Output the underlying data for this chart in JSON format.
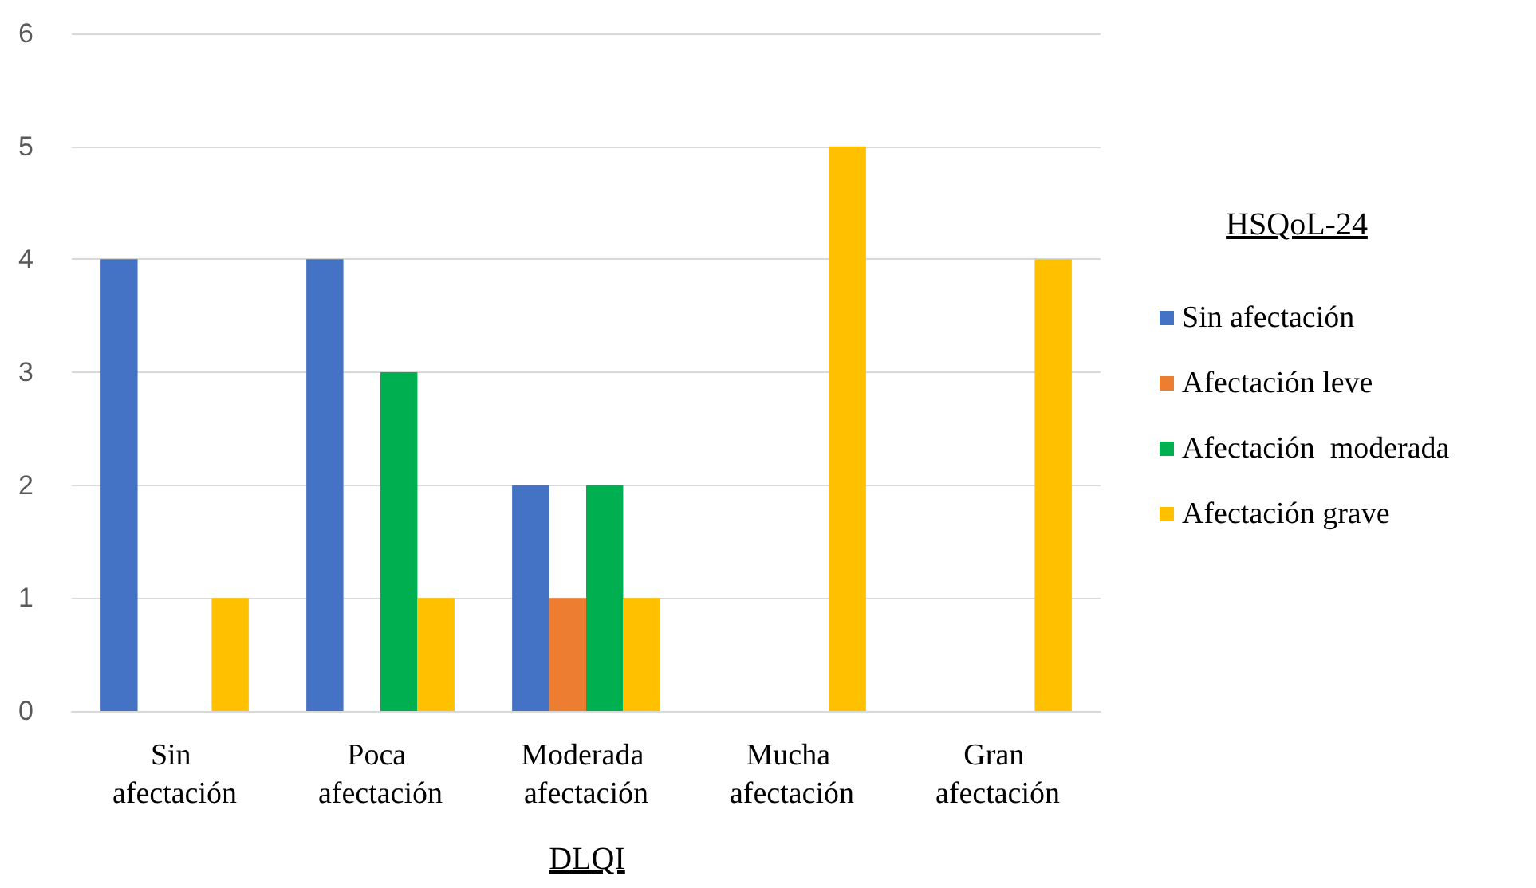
{
  "chart_data": {
    "type": "bar",
    "xlabel": "DLQI",
    "legend_title": "HSQoL-24",
    "categories": [
      "Sin afectación",
      "Poca afectación",
      "Moderada afectación",
      "Mucha afectación",
      "Gran afectación"
    ],
    "series": [
      {
        "name": "Sin afectación",
        "color": "#4472c4",
        "values": [
          4,
          4,
          2,
          0,
          0
        ]
      },
      {
        "name": "Afectación leve",
        "color": "#ed7d31",
        "values": [
          0,
          0,
          1,
          0,
          0
        ]
      },
      {
        "name": "Afectación  moderada",
        "color": "#00b050",
        "values": [
          0,
          3,
          2,
          0,
          0
        ]
      },
      {
        "name": "Afectación grave",
        "color": "#ffc000",
        "values": [
          1,
          1,
          1,
          5,
          4
        ]
      }
    ],
    "ylim": [
      0,
      6
    ],
    "yticks": [
      0,
      1,
      2,
      3,
      4,
      5,
      6
    ],
    "grid": "y",
    "legend": "right"
  }
}
